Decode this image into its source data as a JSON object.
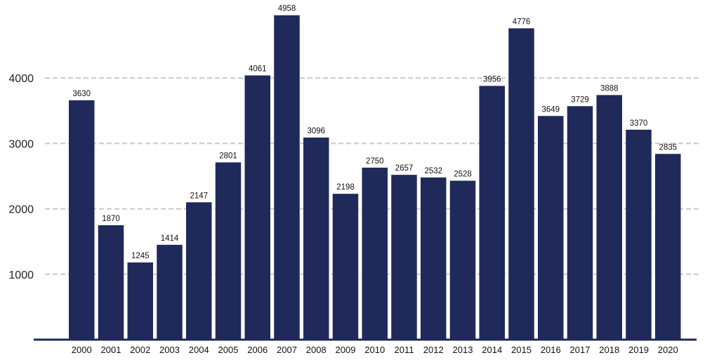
{
  "chart_data": {
    "type": "bar",
    "title": "",
    "xlabel": "",
    "ylabel": "",
    "categories": [
      "2000",
      "2001",
      "2002",
      "2003",
      "2004",
      "2005",
      "2006",
      "2007",
      "2008",
      "2009",
      "2010",
      "2011",
      "2012",
      "2013",
      "2014",
      "2015",
      "2016",
      "2017",
      "2018",
      "2019",
      "2020"
    ],
    "series": [
      {
        "values": [
          3630,
          1870,
          1245,
          1414,
          2147,
          2801,
          4061,
          4958,
          3096,
          2198,
          2750,
          2657,
          2532,
          2528,
          3956,
          4776,
          3649,
          3729,
          3888,
          3370,
          2835
        ],
        "bar_heights": [
          3660,
          1750,
          1180,
          1450,
          2100,
          2710,
          4040,
          4960,
          3090,
          2230,
          2630,
          2520,
          2480,
          2430,
          3880,
          4760,
          3420,
          3570,
          3740,
          3210,
          2840
        ],
        "color": "#1f2a5a"
      }
    ],
    "yticks": [
      1000,
      2000,
      3000,
      4000
    ],
    "ylim": [
      0,
      5100
    ],
    "grid": true,
    "legend": "none"
  }
}
